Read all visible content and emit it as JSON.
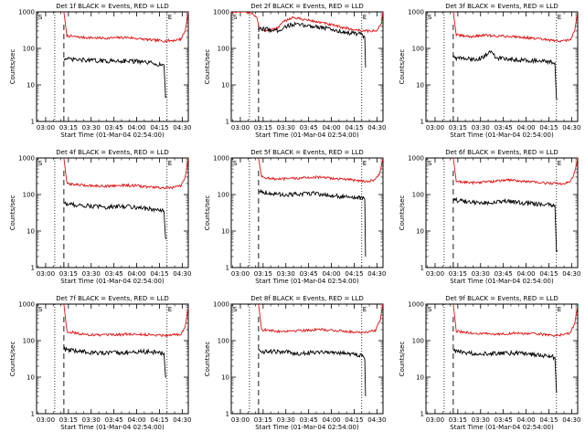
{
  "figure": {
    "y_axis_label": "Counts/sec",
    "x_axis_label": "Start Time (01-Mar-04 02:54:00)",
    "marker_S": "S",
    "marker_E": "E"
  },
  "chart_data": [
    {
      "type": "line",
      "title": "Det 1f BLACK = Events, RED = LLD",
      "xlabel": "Start Time (01-Mar-04 02:54:00)",
      "ylabel": "Counts/sec",
      "yscale": "log",
      "ylim": [
        1,
        1000
      ],
      "y_ticks": [
        1,
        10,
        100,
        1000
      ],
      "x_ticks": [
        "03:00",
        "03:15",
        "03:30",
        "03:45",
        "04:00",
        "04:15",
        "04:30"
      ],
      "x_tick_minutes": [
        6,
        21,
        36,
        51,
        66,
        81,
        96
      ],
      "xlim_minutes": [
        0,
        100
      ],
      "vlines_minutes": {
        "dotted": [
          12,
          86
        ],
        "dashed": 18
      },
      "series": [
        {
          "color": "#e01010",
          "t": [
            18,
            20,
            30,
            45,
            60,
            75,
            85,
            90,
            95,
            98,
            100
          ],
          "values": [
            1000,
            220,
            200,
            190,
            200,
            170,
            160,
            165,
            180,
            300,
            1000
          ]
        },
        {
          "color": "#000000",
          "t": [
            18,
            20,
            30,
            45,
            60,
            75,
            84,
            85,
            85.5
          ],
          "values": [
            55,
            50,
            48,
            45,
            46,
            40,
            35,
            5,
            5
          ]
        }
      ]
    },
    {
      "type": "line",
      "title": "Det 2f BLACK = Events, RED = LLD",
      "xlabel": "Start Time (01-Mar-04 02:54:00)",
      "ylabel": "Counts/sec",
      "yscale": "log",
      "ylim": [
        1,
        1000
      ],
      "y_ticks": [
        1,
        10,
        100,
        1000
      ],
      "x_ticks": [
        "03:00",
        "03:15",
        "03:30",
        "03:45",
        "04:00",
        "04:15",
        "04:30"
      ],
      "x_tick_minutes": [
        6,
        21,
        36,
        51,
        66,
        81,
        96
      ],
      "xlim_minutes": [
        0,
        100
      ],
      "vlines_minutes": {
        "dotted": [
          12,
          86
        ],
        "dashed": 18
      },
      "series": [
        {
          "color": "#e01010",
          "t": [
            0,
            5,
            10,
            14,
            17,
            18,
            21,
            30,
            35,
            40,
            50,
            60,
            70,
            80,
            88,
            92,
            96,
            99,
            100
          ],
          "values": [
            1000,
            1000,
            1000,
            900,
            700,
            400,
            300,
            350,
            550,
            700,
            600,
            500,
            400,
            330,
            300,
            300,
            300,
            500,
            1000
          ]
        },
        {
          "color": "#000000",
          "t": [
            18,
            21,
            30,
            35,
            40,
            50,
            60,
            70,
            80,
            85,
            88,
            88.5
          ],
          "values": [
            300,
            350,
            300,
            380,
            450,
            420,
            380,
            300,
            260,
            250,
            200,
            30
          ]
        }
      ]
    },
    {
      "type": "line",
      "title": "Det 3f BLACK = Events, RED = LLD",
      "xlabel": "Start Time (01-Mar-04 02:54:00)",
      "ylabel": "Counts/sec",
      "yscale": "log",
      "ylim": [
        1,
        1000
      ],
      "y_ticks": [
        1,
        10,
        100,
        1000
      ],
      "x_ticks": [
        "03:00",
        "03:15",
        "03:30",
        "03:45",
        "04:00",
        "04:15",
        "04:30"
      ],
      "x_tick_minutes": [
        6,
        21,
        36,
        51,
        66,
        81,
        96
      ],
      "xlim_minutes": [
        0,
        100
      ],
      "vlines_minutes": {
        "dotted": [
          12,
          86
        ],
        "dashed": 18
      },
      "series": [
        {
          "color": "#e01010",
          "t": [
            18,
            20,
            30,
            38,
            45,
            60,
            75,
            85,
            90,
            95,
            98,
            100
          ],
          "values": [
            1000,
            230,
            210,
            230,
            220,
            210,
            180,
            160,
            160,
            170,
            300,
            1000
          ]
        },
        {
          "color": "#000000",
          "t": [
            18,
            20,
            30,
            38,
            42,
            46,
            60,
            75,
            85,
            86,
            86.5
          ],
          "values": [
            60,
            55,
            50,
            55,
            90,
            55,
            50,
            45,
            40,
            4,
            4
          ]
        }
      ]
    },
    {
      "type": "line",
      "title": "Det 4f BLACK = Events, RED = LLD",
      "xlabel": "Start Time (01-Mar-04 02:54:00)",
      "ylabel": "Counts/sec",
      "yscale": "log",
      "ylim": [
        1,
        1000
      ],
      "y_ticks": [
        1,
        10,
        100,
        1000
      ],
      "x_ticks": [
        "03:00",
        "03:15",
        "03:30",
        "03:45",
        "04:00",
        "04:15",
        "04:30"
      ],
      "x_tick_minutes": [
        6,
        21,
        36,
        51,
        66,
        81,
        96
      ],
      "xlim_minutes": [
        0,
        100
      ],
      "vlines_minutes": {
        "dotted": [
          12,
          86
        ],
        "dashed": 18
      },
      "series": [
        {
          "color": "#e01010",
          "t": [
            18,
            20,
            30,
            45,
            60,
            75,
            85,
            90,
            95,
            98,
            100
          ],
          "values": [
            1000,
            200,
            180,
            170,
            180,
            160,
            150,
            155,
            170,
            300,
            1000
          ]
        },
        {
          "color": "#000000",
          "t": [
            18,
            20,
            30,
            45,
            60,
            75,
            84,
            85,
            85.5
          ],
          "values": [
            60,
            55,
            50,
            45,
            48,
            40,
            35,
            6,
            6
          ]
        }
      ]
    },
    {
      "type": "line",
      "title": "Det 5f BLACK = Events, RED = LLD",
      "xlabel": "Start Time (01-Mar-04 02:54:00)",
      "ylabel": "Counts/sec",
      "yscale": "log",
      "ylim": [
        1,
        1000
      ],
      "y_ticks": [
        1,
        10,
        100,
        1000
      ],
      "x_ticks": [
        "03:00",
        "03:15",
        "03:30",
        "03:45",
        "04:00",
        "04:15",
        "04:30"
      ],
      "x_tick_minutes": [
        6,
        21,
        36,
        51,
        66,
        81,
        96
      ],
      "xlim_minutes": [
        0,
        100
      ],
      "vlines_minutes": {
        "dotted": [
          12,
          86
        ],
        "dashed": 18
      },
      "series": [
        {
          "color": "#e01010",
          "t": [
            18,
            20,
            30,
            45,
            55,
            60,
            75,
            85,
            90,
            95,
            98,
            100
          ],
          "values": [
            1000,
            300,
            260,
            280,
            300,
            290,
            260,
            240,
            230,
            250,
            400,
            1000
          ]
        },
        {
          "color": "#000000",
          "t": [
            18,
            20,
            30,
            45,
            55,
            60,
            75,
            85,
            88,
            88.5
          ],
          "values": [
            130,
            120,
            100,
            100,
            110,
            100,
            85,
            80,
            75,
            2
          ]
        }
      ]
    },
    {
      "type": "line",
      "title": "Det 6f BLACK = Events, RED = LLD",
      "xlabel": "Start Time (01-Mar-04 02:54:00)",
      "ylabel": "Counts/sec",
      "yscale": "log",
      "ylim": [
        1,
        1000
      ],
      "y_ticks": [
        1,
        10,
        100,
        1000
      ],
      "x_ticks": [
        "03:00",
        "03:15",
        "03:30",
        "03:45",
        "04:00",
        "04:15",
        "04:30"
      ],
      "x_tick_minutes": [
        6,
        21,
        36,
        51,
        66,
        81,
        96
      ],
      "xlim_minutes": [
        0,
        100
      ],
      "vlines_minutes": {
        "dotted": [
          12,
          86
        ],
        "dashed": 18
      },
      "series": [
        {
          "color": "#e01010",
          "t": [
            18,
            20,
            30,
            45,
            55,
            60,
            75,
            85,
            90,
            95,
            98,
            100
          ],
          "values": [
            1000,
            230,
            210,
            230,
            250,
            240,
            210,
            200,
            200,
            220,
            400,
            1000
          ]
        },
        {
          "color": "#000000",
          "t": [
            18,
            20,
            30,
            45,
            55,
            60,
            75,
            85,
            86,
            86.5
          ],
          "values": [
            80,
            70,
            60,
            60,
            65,
            60,
            55,
            50,
            3,
            3
          ]
        }
      ]
    },
    {
      "type": "line",
      "title": "Det 7f BLACK = Events, RED = LLD",
      "xlabel": "Start Time (01-Mar-04 02:54:00)",
      "ylabel": "Counts/sec",
      "yscale": "log",
      "ylim": [
        1,
        1000
      ],
      "y_ticks": [
        1,
        10,
        100,
        1000
      ],
      "x_ticks": [
        "03:00",
        "03:15",
        "03:30",
        "03:45",
        "04:00",
        "04:15",
        "04:30"
      ],
      "x_tick_minutes": [
        6,
        21,
        36,
        51,
        66,
        81,
        96
      ],
      "xlim_minutes": [
        0,
        100
      ],
      "vlines_minutes": {
        "dotted": [
          12,
          86
        ],
        "dashed": 18
      },
      "series": [
        {
          "color": "#e01010",
          "t": [
            18,
            20,
            30,
            45,
            60,
            75,
            85,
            90,
            95,
            98,
            100
          ],
          "values": [
            1000,
            180,
            150,
            140,
            150,
            145,
            140,
            145,
            150,
            250,
            800
          ]
        },
        {
          "color": "#000000",
          "t": [
            18,
            20,
            30,
            45,
            60,
            75,
            84,
            85,
            85.5
          ],
          "values": [
            60,
            55,
            50,
            45,
            48,
            50,
            45,
            10,
            10
          ]
        }
      ]
    },
    {
      "type": "line",
      "title": "Det 8f BLACK = Events, RED = LLD",
      "xlabel": "Start Time (01-Mar-04 02:54:00)",
      "ylabel": "Counts/sec",
      "yscale": "log",
      "ylim": [
        1,
        1000
      ],
      "y_ticks": [
        1,
        10,
        100,
        1000
      ],
      "x_ticks": [
        "03:00",
        "03:15",
        "03:30",
        "03:45",
        "04:00",
        "04:15",
        "04:30"
      ],
      "x_tick_minutes": [
        6,
        21,
        36,
        51,
        66,
        81,
        96
      ],
      "xlim_minutes": [
        0,
        100
      ],
      "vlines_minutes": {
        "dotted": [
          12,
          86
        ],
        "dashed": 18
      },
      "series": [
        {
          "color": "#e01010",
          "t": [
            18,
            20,
            30,
            45,
            60,
            75,
            85,
            90,
            95,
            98,
            100
          ],
          "values": [
            1000,
            200,
            180,
            190,
            200,
            180,
            170,
            175,
            190,
            350,
            1000
          ]
        },
        {
          "color": "#000000",
          "t": [
            18,
            20,
            30,
            45,
            60,
            75,
            86,
            88,
            88.5
          ],
          "values": [
            55,
            50,
            50,
            45,
            50,
            45,
            40,
            30,
            3
          ]
        }
      ]
    },
    {
      "type": "line",
      "title": "Det 9f BLACK = Events, RED = LLD",
      "xlabel": "Start Time (01-Mar-04 02:54:00)",
      "ylabel": "Counts/sec",
      "yscale": "log",
      "ylim": [
        1,
        1000
      ],
      "y_ticks": [
        1,
        10,
        100,
        1000
      ],
      "x_ticks": [
        "03:00",
        "03:15",
        "03:30",
        "03:45",
        "04:00",
        "04:15",
        "04:30"
      ],
      "x_tick_minutes": [
        6,
        21,
        36,
        51,
        66,
        81,
        96
      ],
      "xlim_minutes": [
        0,
        100
      ],
      "vlines_minutes": {
        "dotted": [
          12,
          86
        ],
        "dashed": 18
      },
      "series": [
        {
          "color": "#e01010",
          "t": [
            18,
            20,
            30,
            45,
            60,
            75,
            85,
            90,
            95,
            98,
            100
          ],
          "values": [
            1000,
            180,
            160,
            150,
            160,
            150,
            140,
            145,
            160,
            300,
            900
          ]
        },
        {
          "color": "#000000",
          "t": [
            18,
            20,
            30,
            45,
            60,
            75,
            85,
            86,
            86.5
          ],
          "values": [
            55,
            50,
            45,
            45,
            45,
            40,
            35,
            4,
            4
          ]
        }
      ]
    }
  ]
}
